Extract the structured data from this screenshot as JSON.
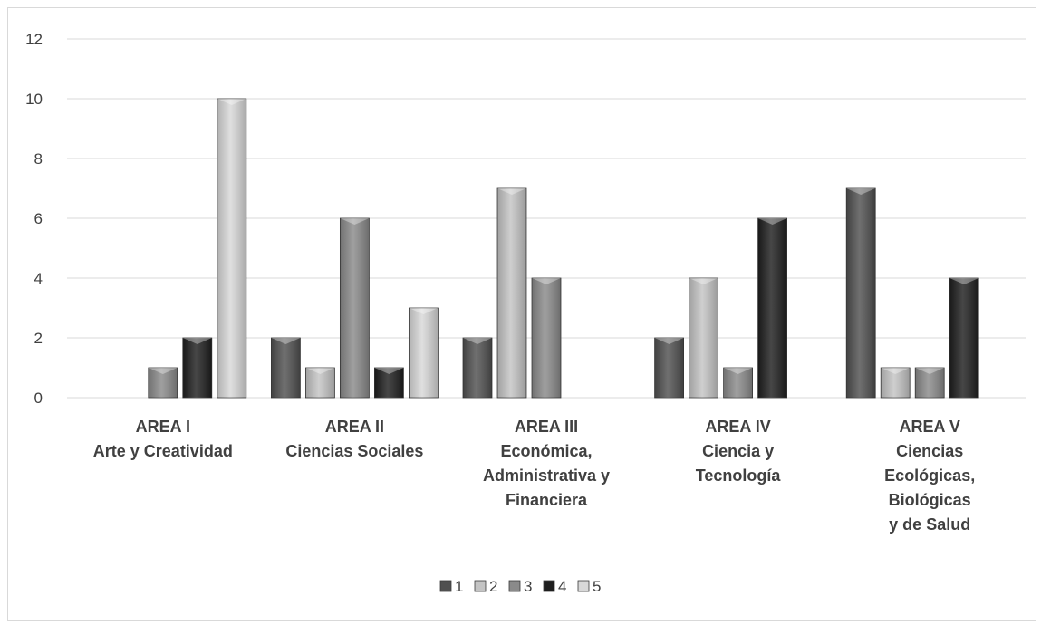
{
  "chart_data": {
    "type": "bar",
    "categories": [
      [
        "AREA I",
        "Arte y Creatividad"
      ],
      [
        "AREA II",
        "Ciencias Sociales"
      ],
      [
        "AREA III",
        "Económica,",
        "Administrativa y",
        "Financiera"
      ],
      [
        "AREA IV",
        "Ciencia y",
        "Tecnología"
      ],
      [
        "AREA V",
        "Ciencias",
        "Ecológicas,",
        "Biológicas",
        "y de Salud"
      ]
    ],
    "series": [
      {
        "name": "1",
        "color": "#505050",
        "values": [
          0,
          2,
          2,
          2,
          7
        ]
      },
      {
        "name": "2",
        "color": "#c4c4c4",
        "values": [
          0,
          1,
          7,
          4,
          1
        ]
      },
      {
        "name": "3",
        "color": "#8a8a8a",
        "values": [
          1,
          6,
          4,
          1,
          1
        ]
      },
      {
        "name": "4",
        "color": "#1e1e1e",
        "values": [
          2,
          1,
          0,
          6,
          4
        ]
      },
      {
        "name": "5",
        "color": "#d8d8d8",
        "values": [
          10,
          3,
          0,
          0,
          0
        ]
      }
    ],
    "yticks": [
      0,
      2,
      4,
      6,
      8,
      10,
      12
    ],
    "ylim": [
      0,
      12
    ],
    "grid": true,
    "legend_position": "bottom"
  }
}
